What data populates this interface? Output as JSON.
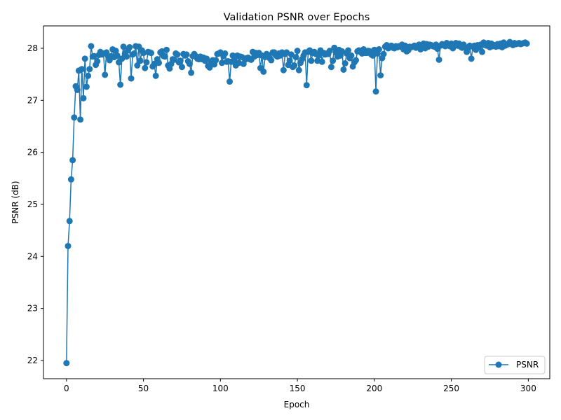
{
  "chart_data": {
    "type": "line",
    "title": "Validation PSNR over Epochs",
    "xlabel": "Epoch",
    "ylabel": "PSNR (dB)",
    "xlim": [
      -14.95,
      313.95
    ],
    "ylim": [
      21.65,
      28.43
    ],
    "xticks": [
      0,
      50,
      100,
      150,
      200,
      250,
      300
    ],
    "yticks": [
      22,
      23,
      24,
      25,
      26,
      27,
      28
    ],
    "grid": false,
    "legend": "bottom-right",
    "series_color": "#1f77b4",
    "series": [
      {
        "name": "PSNR",
        "x": [
          0,
          1,
          2,
          3,
          4,
          5,
          6,
          7,
          8,
          9,
          10,
          11,
          12,
          13,
          14,
          15,
          16,
          17,
          18,
          19,
          20,
          21,
          22,
          23,
          24,
          25,
          26,
          27,
          28,
          29,
          30,
          31,
          32,
          33,
          34,
          35,
          36,
          37,
          38,
          39,
          40,
          41,
          42,
          43,
          44,
          45,
          46,
          47,
          48,
          49,
          50,
          51,
          52,
          53,
          54,
          55,
          56,
          57,
          58,
          59,
          60,
          61,
          62,
          63,
          64,
          65,
          66,
          67,
          68,
          69,
          70,
          71,
          72,
          73,
          74,
          75,
          76,
          77,
          78,
          79,
          80,
          81,
          82,
          83,
          84,
          85,
          86,
          87,
          88,
          89,
          90,
          91,
          92,
          93,
          94,
          95,
          96,
          97,
          98,
          99,
          100,
          101,
          102,
          103,
          104,
          105,
          106,
          107,
          108,
          109,
          110,
          111,
          112,
          113,
          114,
          115,
          116,
          117,
          118,
          119,
          120,
          121,
          122,
          123,
          124,
          125,
          126,
          127,
          128,
          129,
          130,
          131,
          132,
          133,
          134,
          135,
          136,
          137,
          138,
          139,
          140,
          141,
          142,
          143,
          144,
          145,
          146,
          147,
          148,
          149,
          150,
          151,
          152,
          153,
          154,
          155,
          156,
          157,
          158,
          159,
          160,
          161,
          162,
          163,
          164,
          165,
          166,
          167,
          168,
          169,
          170,
          171,
          172,
          173,
          174,
          175,
          176,
          177,
          178,
          179,
          180,
          181,
          182,
          183,
          184,
          185,
          186,
          187,
          188,
          189,
          190,
          191,
          192,
          193,
          194,
          195,
          196,
          197,
          198,
          199,
          200,
          201,
          202,
          203,
          204,
          205,
          206,
          207,
          208,
          209,
          210,
          211,
          212,
          213,
          214,
          215,
          216,
          217,
          218,
          219,
          220,
          221,
          222,
          223,
          224,
          225,
          226,
          227,
          228,
          229,
          230,
          231,
          232,
          233,
          234,
          235,
          236,
          237,
          238,
          239,
          240,
          241,
          242,
          243,
          244,
          245,
          246,
          247,
          248,
          249,
          250,
          251,
          252,
          253,
          254,
          255,
          256,
          257,
          258,
          259,
          260,
          261,
          262,
          263,
          264,
          265,
          266,
          267,
          268,
          269,
          270,
          271,
          272,
          273,
          274,
          275,
          276,
          277,
          278,
          279,
          280,
          281,
          282,
          283,
          284,
          285,
          286,
          287,
          288,
          289,
          290,
          291,
          292,
          293,
          294,
          295,
          296,
          297,
          298,
          299
        ],
        "y": [
          21.95,
          24.2,
          24.68,
          25.48,
          25.85,
          26.67,
          27.27,
          27.2,
          27.57,
          26.63,
          27.6,
          27.04,
          27.8,
          27.26,
          27.47,
          27.6,
          28.04,
          27.84,
          27.85,
          27.68,
          27.75,
          27.87,
          27.93,
          27.88,
          27.9,
          27.49,
          27.92,
          27.85,
          27.77,
          27.85,
          27.98,
          27.83,
          27.95,
          27.86,
          27.73,
          27.3,
          27.8,
          28.03,
          27.9,
          27.84,
          27.96,
          28.02,
          27.42,
          27.88,
          27.9,
          28.04,
          27.67,
          28.03,
          27.76,
          27.96,
          27.91,
          27.62,
          27.73,
          27.93,
          27.92,
          27.91,
          27.65,
          27.7,
          27.47,
          27.79,
          27.72,
          27.92,
          27.94,
          27.85,
          27.84,
          27.97,
          27.67,
          27.61,
          27.7,
          27.79,
          27.78,
          27.9,
          27.88,
          27.73,
          27.76,
          27.64,
          27.89,
          27.86,
          27.88,
          27.75,
          27.7,
          27.53,
          27.85,
          27.89,
          27.85,
          27.8,
          27.79,
          27.84,
          27.79,
          27.82,
          27.76,
          27.8,
          27.66,
          27.63,
          27.74,
          27.77,
          27.69,
          27.77,
          27.89,
          27.9,
          27.92,
          27.72,
          27.85,
          27.9,
          27.74,
          27.75,
          27.36,
          27.74,
          27.86,
          27.76,
          27.67,
          27.86,
          27.72,
          27.84,
          27.83,
          27.7,
          27.78,
          27.81,
          27.82,
          27.79,
          27.78,
          27.93,
          27.84,
          27.91,
          27.87,
          27.91,
          27.62,
          27.86,
          27.55,
          27.83,
          27.89,
          27.87,
          27.81,
          27.77,
          27.92,
          27.92,
          27.86,
          27.84,
          27.9,
          27.86,
          27.92,
          27.58,
          27.89,
          27.92,
          27.68,
          27.76,
          27.88,
          27.64,
          27.67,
          27.83,
          27.95,
          27.58,
          27.72,
          27.79,
          27.86,
          27.92,
          27.29,
          27.93,
          27.96,
          27.76,
          27.91,
          27.93,
          27.89,
          27.76,
          27.86,
          27.96,
          27.74,
          27.91,
          27.88,
          27.9,
          27.89,
          27.95,
          27.64,
          27.76,
          28.01,
          27.92,
          27.84,
          27.97,
          27.86,
          27.94,
          27.59,
          27.71,
          27.9,
          27.96,
          27.81,
          27.86,
          27.65,
          27.73,
          27.77,
          27.94,
          27.96,
          27.93,
          27.9,
          27.98,
          27.91,
          27.91,
          27.95,
          27.94,
          27.88,
          27.86,
          27.97,
          27.17,
          27.9,
          27.98,
          27.48,
          27.81,
          27.89,
          28.03,
          28.06,
          28.0,
          28.02,
          28.05,
          28.01,
          28.0,
          28.04,
          28.02,
          28.04,
          28.03,
          28.07,
          27.98,
          28.05,
          27.94,
          27.96,
          28.03,
          28.02,
          28.03,
          28.05,
          28.01,
          28.03,
          28.07,
          27.98,
          28.04,
          28.09,
          28.0,
          28.08,
          28.03,
          28.07,
          28.06,
          28.04,
          28.03,
          28.07,
          27.99,
          27.78,
          28.05,
          28.08,
          28.06,
          28.04,
          28.1,
          28.06,
          28.04,
          28.09,
          28.0,
          28.07,
          28.1,
          28.05,
          28.09,
          28.03,
          28.01,
          28.07,
          28.02,
          27.93,
          28.01,
          28.05,
          27.8,
          28.03,
          28.05,
          27.97,
          28.06,
          28.02,
          28.07,
          27.93,
          28.11,
          28.06,
          28.05,
          28.1,
          28.02,
          28.09,
          28.04,
          28.06,
          28.03,
          28.08,
          28.04,
          28.09,
          28.02,
          28.11,
          28.05,
          28.07,
          28.08,
          28.12,
          28.09,
          28.06,
          28.1,
          28.08,
          28.09,
          28.1,
          28.08,
          28.09,
          28.1,
          28.11,
          28.09
        ]
      }
    ]
  }
}
